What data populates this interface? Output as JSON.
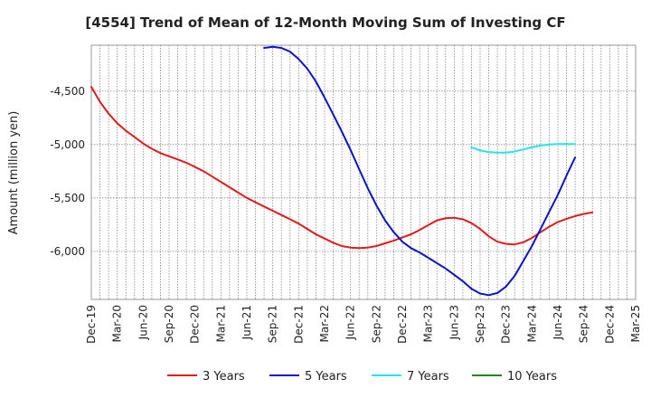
{
  "chart_data": {
    "type": "line",
    "title": "[4554]  Trend of Mean of 12-Month Moving Sum of Investing CF",
    "ylabel": "Amount (million yen)",
    "xlabel": "",
    "x_tick_labels": [
      "Dec-19",
      "Mar-20",
      "Jun-20",
      "Sep-20",
      "Dec-20",
      "Mar-21",
      "Jun-21",
      "Sep-21",
      "Dec-21",
      "Mar-22",
      "Jun-22",
      "Sep-22",
      "Dec-22",
      "Mar-23",
      "Jun-23",
      "Sep-23",
      "Dec-23",
      "Mar-24",
      "Jun-24",
      "Sep-24",
      "Dec-24",
      "Mar-25"
    ],
    "y_tick_labels": [
      "-4,500",
      "-5,000",
      "-5,500",
      "-6,000"
    ],
    "y_ticks": [
      -4500,
      -5000,
      -5500,
      -6000
    ],
    "ylim": [
      -6450,
      -4070
    ],
    "x_months": [
      "2019-12",
      "2025-03"
    ],
    "grid": true,
    "legend_position": "bottom",
    "series": [
      {
        "name": "3 Years",
        "color": "#e31a1c",
        "points": [
          [
            "2019-12",
            -4460
          ],
          [
            "2020-01",
            -4600
          ],
          [
            "2020-02",
            -4710
          ],
          [
            "2020-03",
            -4800
          ],
          [
            "2020-04",
            -4870
          ],
          [
            "2020-05",
            -4930
          ],
          [
            "2020-06",
            -4990
          ],
          [
            "2020-07",
            -5040
          ],
          [
            "2020-08",
            -5080
          ],
          [
            "2020-09",
            -5110
          ],
          [
            "2020-10",
            -5140
          ],
          [
            "2020-11",
            -5170
          ],
          [
            "2020-12",
            -5210
          ],
          [
            "2021-01",
            -5250
          ],
          [
            "2021-02",
            -5300
          ],
          [
            "2021-03",
            -5350
          ],
          [
            "2021-04",
            -5400
          ],
          [
            "2021-05",
            -5450
          ],
          [
            "2021-06",
            -5500
          ],
          [
            "2021-07",
            -5540
          ],
          [
            "2021-08",
            -5580
          ],
          [
            "2021-09",
            -5620
          ],
          [
            "2021-10",
            -5660
          ],
          [
            "2021-11",
            -5700
          ],
          [
            "2021-12",
            -5740
          ],
          [
            "2022-01",
            -5790
          ],
          [
            "2022-02",
            -5840
          ],
          [
            "2022-03",
            -5880
          ],
          [
            "2022-04",
            -5920
          ],
          [
            "2022-05",
            -5950
          ],
          [
            "2022-06",
            -5965
          ],
          [
            "2022-07",
            -5970
          ],
          [
            "2022-08",
            -5965
          ],
          [
            "2022-09",
            -5950
          ],
          [
            "2022-10",
            -5925
          ],
          [
            "2022-11",
            -5900
          ],
          [
            "2022-12",
            -5870
          ],
          [
            "2023-01",
            -5840
          ],
          [
            "2023-02",
            -5800
          ],
          [
            "2023-03",
            -5755
          ],
          [
            "2023-04",
            -5710
          ],
          [
            "2023-05",
            -5690
          ],
          [
            "2023-06",
            -5685
          ],
          [
            "2023-07",
            -5700
          ],
          [
            "2023-08",
            -5735
          ],
          [
            "2023-09",
            -5790
          ],
          [
            "2023-10",
            -5860
          ],
          [
            "2023-11",
            -5910
          ],
          [
            "2023-12",
            -5930
          ],
          [
            "2024-01",
            -5935
          ],
          [
            "2024-02",
            -5915
          ],
          [
            "2024-03",
            -5875
          ],
          [
            "2024-04",
            -5820
          ],
          [
            "2024-05",
            -5770
          ],
          [
            "2024-06",
            -5725
          ],
          [
            "2024-07",
            -5695
          ],
          [
            "2024-08",
            -5670
          ],
          [
            "2024-09",
            -5650
          ],
          [
            "2024-10",
            -5635
          ]
        ]
      },
      {
        "name": "5 Years",
        "color": "#0a14c8",
        "points": [
          [
            "2021-08",
            -4095
          ],
          [
            "2021-09",
            -4085
          ],
          [
            "2021-10",
            -4095
          ],
          [
            "2021-11",
            -4130
          ],
          [
            "2021-12",
            -4200
          ],
          [
            "2022-01",
            -4290
          ],
          [
            "2022-02",
            -4410
          ],
          [
            "2022-03",
            -4560
          ],
          [
            "2022-04",
            -4720
          ],
          [
            "2022-05",
            -4880
          ],
          [
            "2022-06",
            -5050
          ],
          [
            "2022-07",
            -5230
          ],
          [
            "2022-08",
            -5410
          ],
          [
            "2022-09",
            -5570
          ],
          [
            "2022-10",
            -5710
          ],
          [
            "2022-11",
            -5820
          ],
          [
            "2022-12",
            -5910
          ],
          [
            "2023-01",
            -5970
          ],
          [
            "2023-02",
            -6010
          ],
          [
            "2023-03",
            -6060
          ],
          [
            "2023-04",
            -6110
          ],
          [
            "2023-05",
            -6160
          ],
          [
            "2023-06",
            -6220
          ],
          [
            "2023-07",
            -6280
          ],
          [
            "2023-08",
            -6350
          ],
          [
            "2023-09",
            -6395
          ],
          [
            "2023-10",
            -6410
          ],
          [
            "2023-11",
            -6390
          ],
          [
            "2023-12",
            -6330
          ],
          [
            "2024-01",
            -6230
          ],
          [
            "2024-02",
            -6090
          ],
          [
            "2024-03",
            -5950
          ],
          [
            "2024-04",
            -5790
          ],
          [
            "2024-05",
            -5630
          ],
          [
            "2024-06",
            -5470
          ],
          [
            "2024-07",
            -5290
          ],
          [
            "2024-08",
            -5120
          ]
        ]
      },
      {
        "name": "7 Years",
        "color": "#22e5ee",
        "points": [
          [
            "2023-08",
            -5025
          ],
          [
            "2023-09",
            -5055
          ],
          [
            "2023-10",
            -5070
          ],
          [
            "2023-11",
            -5075
          ],
          [
            "2023-12",
            -5075
          ],
          [
            "2024-01",
            -5065
          ],
          [
            "2024-02",
            -5045
          ],
          [
            "2024-03",
            -5025
          ],
          [
            "2024-04",
            -5010
          ],
          [
            "2024-05",
            -5000
          ],
          [
            "2024-06",
            -4995
          ],
          [
            "2024-07",
            -4995
          ],
          [
            "2024-08",
            -4995
          ]
        ]
      },
      {
        "name": "10 Years",
        "color": "#1a8a1a",
        "points": []
      }
    ]
  }
}
